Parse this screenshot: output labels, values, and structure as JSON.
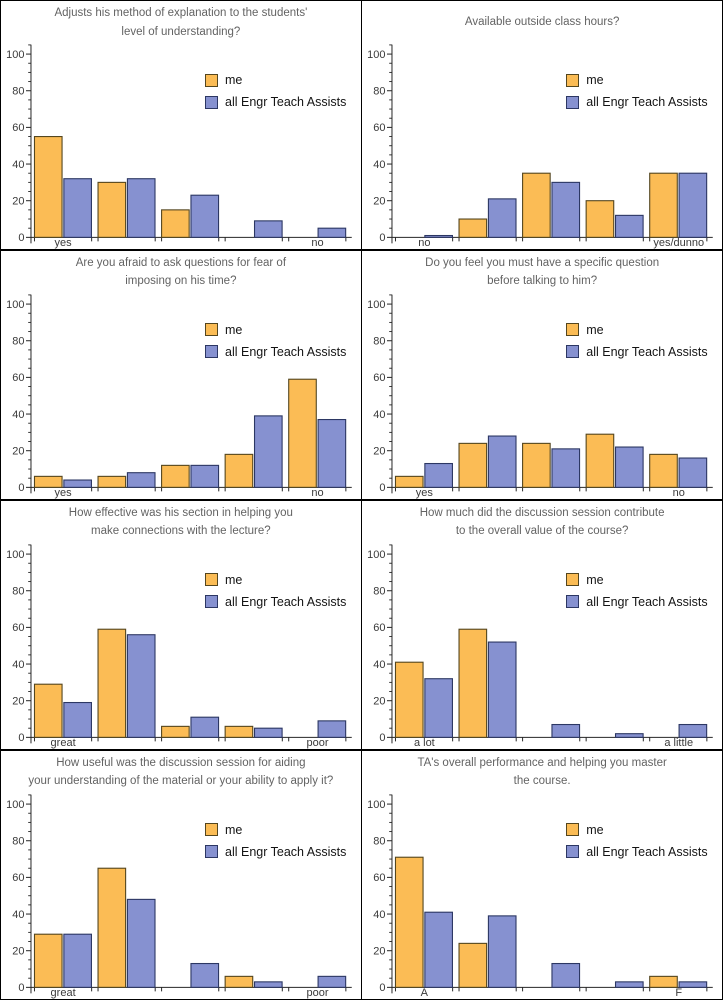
{
  "page": {
    "background": "#ffffff",
    "divider_color": "#000000",
    "description_labels": {
      "me": "me",
      "ta": "all Engr Teach Assists"
    }
  },
  "legend": {
    "me_label": "me",
    "ta_label": "all Engr Teach Assists"
  },
  "colors": {
    "me_fill": "#FBBC55",
    "me_edge": "#54461F",
    "ta_fill": "#8691D0",
    "ta_edge": "#2C3763",
    "title_text": "#636363",
    "tick_text": "#3A3A3A",
    "axis_line": "#262626"
  },
  "chart_data": [
    {
      "type": "bar",
      "title_lines": [
        "Adjusts his method of explanation to the students'",
        "level of understanding?"
      ],
      "categories": [
        "yes",
        "",
        "",
        "",
        "no"
      ],
      "series": [
        {
          "name": "me",
          "values": [
            55,
            30,
            15,
            0,
            0
          ]
        },
        {
          "name": "all Engr Teach Assists",
          "values": [
            32,
            32,
            23,
            9,
            5
          ]
        }
      ],
      "ylim": [
        0,
        105
      ],
      "yticks": [
        0,
        20,
        40,
        60,
        80,
        100
      ],
      "minor_step": 5,
      "grid": false,
      "legend_position": "upper-right"
    },
    {
      "type": "bar",
      "title_lines": [
        "Available outside class hours?"
      ],
      "categories": [
        "no",
        "",
        "",
        "",
        "yes/dunno"
      ],
      "series": [
        {
          "name": "me",
          "values": [
            0,
            10,
            35,
            20,
            35
          ]
        },
        {
          "name": "all Engr Teach Assists",
          "values": [
            1,
            21,
            30,
            12,
            35
          ]
        }
      ],
      "ylim": [
        0,
        105
      ],
      "yticks": [
        0,
        20,
        40,
        60,
        80,
        100
      ],
      "minor_step": 5,
      "grid": false,
      "legend_position": "upper-right"
    },
    {
      "type": "bar",
      "title_lines": [
        "Are you afraid to ask questions for fear of",
        "imposing on his time?"
      ],
      "categories": [
        "yes",
        "",
        "",
        "",
        "no"
      ],
      "series": [
        {
          "name": "me",
          "values": [
            6,
            6,
            12,
            18,
            59
          ]
        },
        {
          "name": "all Engr Teach Assists",
          "values": [
            4,
            8,
            12,
            39,
            37
          ]
        }
      ],
      "ylim": [
        0,
        105
      ],
      "yticks": [
        0,
        20,
        40,
        60,
        80,
        100
      ],
      "minor_step": 5,
      "grid": false,
      "legend_position": "upper-right"
    },
    {
      "type": "bar",
      "title_lines": [
        "Do you feel you must have a specific question",
        "before talking to him?"
      ],
      "categories": [
        "yes",
        "",
        "",
        "",
        "no"
      ],
      "series": [
        {
          "name": "me",
          "values": [
            6,
            24,
            24,
            29,
            18
          ]
        },
        {
          "name": "all Engr Teach Assists",
          "values": [
            13,
            28,
            21,
            22,
            16
          ]
        }
      ],
      "ylim": [
        0,
        105
      ],
      "yticks": [
        0,
        20,
        40,
        60,
        80,
        100
      ],
      "minor_step": 5,
      "grid": false,
      "legend_position": "upper-right"
    },
    {
      "type": "bar",
      "title_lines": [
        "How effective was his section in helping you",
        "make connections with the lecture?"
      ],
      "categories": [
        "great",
        "",
        "",
        "",
        "poor"
      ],
      "series": [
        {
          "name": "me",
          "values": [
            29,
            59,
            6,
            6,
            0
          ]
        },
        {
          "name": "all Engr Teach Assists",
          "values": [
            19,
            56,
            11,
            5,
            9
          ]
        }
      ],
      "ylim": [
        0,
        105
      ],
      "yticks": [
        0,
        20,
        40,
        60,
        80,
        100
      ],
      "minor_step": 5,
      "grid": false,
      "legend_position": "upper-right"
    },
    {
      "type": "bar",
      "title_lines": [
        "How much did the discussion session contribute",
        "to the overall value of the course?"
      ],
      "categories": [
        "a lot",
        "",
        "",
        "",
        "a little"
      ],
      "series": [
        {
          "name": "me",
          "values": [
            41,
            59,
            0,
            0,
            0
          ]
        },
        {
          "name": "all Engr Teach Assists",
          "values": [
            32,
            52,
            7,
            2,
            7
          ]
        }
      ],
      "ylim": [
        0,
        105
      ],
      "yticks": [
        0,
        20,
        40,
        60,
        80,
        100
      ],
      "minor_step": 5,
      "grid": false,
      "legend_position": "upper-right"
    },
    {
      "type": "bar",
      "title_lines": [
        "How useful was the discussion session for aiding",
        "your understanding of the material or your ability to apply it?"
      ],
      "categories": [
        "great",
        "",
        "",
        "",
        "poor"
      ],
      "series": [
        {
          "name": "me",
          "values": [
            29,
            65,
            0,
            6,
            0
          ]
        },
        {
          "name": "all Engr Teach Assists",
          "values": [
            29,
            48,
            13,
            3,
            6
          ]
        }
      ],
      "ylim": [
        0,
        105
      ],
      "yticks": [
        0,
        20,
        40,
        60,
        80,
        100
      ],
      "minor_step": 5,
      "grid": false,
      "legend_position": "upper-right"
    },
    {
      "type": "bar",
      "title_lines": [
        "TA's overall performance and helping you master",
        "the course."
      ],
      "categories": [
        "A",
        "",
        "",
        "",
        "F"
      ],
      "series": [
        {
          "name": "me",
          "values": [
            71,
            24,
            0,
            0,
            6
          ]
        },
        {
          "name": "all Engr Teach Assists",
          "values": [
            41,
            39,
            13,
            3,
            3
          ]
        }
      ],
      "ylim": [
        0,
        105
      ],
      "yticks": [
        0,
        20,
        40,
        60,
        80,
        100
      ],
      "minor_step": 5,
      "grid": false,
      "legend_position": "upper-right"
    }
  ]
}
